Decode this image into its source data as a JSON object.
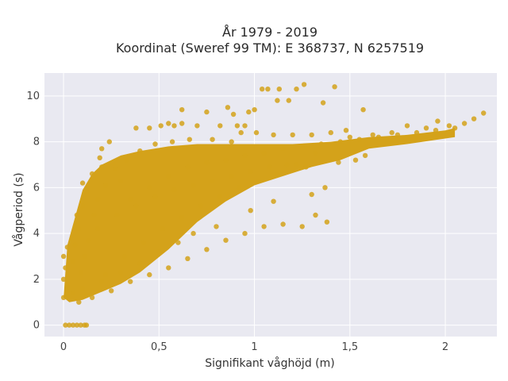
{
  "chart_data": {
    "type": "scatter",
    "title": "År 1979 - 2019",
    "subtitle": "Koordinat (Sweref 99 TM): E 368737, N 6257519",
    "xlabel": "Signifikant våghöjd (m)",
    "ylabel": "Vågperiod (s)",
    "xlim": [
      -0.1,
      2.27
    ],
    "ylim": [
      -0.5,
      11.0
    ],
    "x_ticks": [
      0,
      0.5,
      1,
      1.5,
      2
    ],
    "x_tick_labels": [
      "0",
      "0,5",
      "1",
      "1,5",
      "2"
    ],
    "y_ticks": [
      0,
      2,
      4,
      6,
      8,
      10
    ],
    "y_tick_labels": [
      "0",
      "2",
      "4",
      "6",
      "8",
      "10"
    ],
    "grid": true,
    "legend": "none",
    "marker_color": "#D4A21A",
    "background_color": "#E9E9F1",
    "series": [
      {
        "points": [
          [
            0.01,
            0.0
          ],
          [
            0.03,
            0.0
          ],
          [
            0.05,
            0.0
          ],
          [
            0.07,
            0.0
          ],
          [
            0.09,
            0.0
          ],
          [
            0.11,
            0.0
          ],
          [
            0.12,
            0.0
          ],
          [
            0.0,
            1.2
          ],
          [
            0.02,
            1.5
          ],
          [
            0.0,
            2.0
          ],
          [
            0.01,
            2.5
          ],
          [
            0.0,
            3.0
          ],
          [
            0.02,
            3.4
          ],
          [
            0.05,
            2.8
          ],
          [
            0.06,
            3.5
          ],
          [
            0.08,
            4.2
          ],
          [
            0.07,
            4.8
          ],
          [
            0.1,
            5.2
          ],
          [
            0.12,
            5.8
          ],
          [
            0.1,
            6.2
          ],
          [
            0.15,
            6.6
          ],
          [
            0.19,
            7.3
          ],
          [
            0.2,
            7.7
          ],
          [
            0.24,
            8.0
          ],
          [
            0.38,
            8.6
          ],
          [
            0.55,
            8.8
          ],
          [
            0.45,
            8.6
          ],
          [
            0.51,
            8.7
          ],
          [
            0.58,
            8.7
          ],
          [
            0.62,
            8.8
          ],
          [
            0.7,
            8.7
          ],
          [
            0.82,
            8.7
          ],
          [
            0.91,
            8.7
          ],
          [
            0.95,
            8.7
          ],
          [
            0.75,
            9.3
          ],
          [
            0.86,
            9.5
          ],
          [
            0.89,
            9.2
          ],
          [
            0.97,
            9.3
          ],
          [
            1.0,
            9.4
          ],
          [
            1.04,
            10.3
          ],
          [
            1.07,
            10.3
          ],
          [
            1.13,
            10.3
          ],
          [
            1.22,
            10.3
          ],
          [
            1.26,
            10.5
          ],
          [
            1.42,
            10.4
          ],
          [
            1.12,
            9.8
          ],
          [
            1.18,
            9.8
          ],
          [
            1.36,
            9.7
          ],
          [
            1.57,
            9.4
          ],
          [
            0.62,
            9.4
          ],
          [
            0.2,
            6.9
          ],
          [
            0.3,
            6.3
          ],
          [
            0.35,
            5.5
          ],
          [
            0.45,
            6.0
          ],
          [
            0.55,
            6.5
          ],
          [
            0.65,
            6.9
          ],
          [
            0.75,
            7.1
          ],
          [
            0.85,
            7.2
          ],
          [
            0.95,
            7.4
          ],
          [
            1.05,
            7.5
          ],
          [
            1.15,
            7.7
          ],
          [
            1.25,
            7.8
          ],
          [
            1.35,
            7.9
          ],
          [
            1.45,
            8.0
          ],
          [
            1.55,
            8.1
          ],
          [
            1.65,
            8.2
          ],
          [
            1.75,
            8.3
          ],
          [
            1.85,
            8.4
          ],
          [
            1.95,
            8.5
          ],
          [
            2.05,
            8.6
          ],
          [
            2.15,
            9.0
          ],
          [
            2.2,
            9.25
          ],
          [
            2.1,
            8.8
          ],
          [
            2.02,
            8.7
          ],
          [
            1.96,
            8.9
          ],
          [
            1.9,
            8.6
          ],
          [
            1.8,
            8.7
          ],
          [
            1.72,
            8.4
          ],
          [
            1.62,
            8.3
          ],
          [
            1.5,
            8.2
          ],
          [
            1.32,
            7.5
          ],
          [
            1.22,
            7.0
          ],
          [
            1.12,
            6.6
          ],
          [
            1.02,
            6.3
          ],
          [
            0.92,
            6.0
          ],
          [
            0.82,
            5.6
          ],
          [
            0.72,
            5.2
          ],
          [
            0.62,
            4.7
          ],
          [
            0.52,
            4.2
          ],
          [
            0.42,
            3.6
          ],
          [
            0.32,
            3.0
          ],
          [
            0.22,
            2.2
          ],
          [
            0.12,
            1.3
          ],
          [
            0.08,
            1.0
          ],
          [
            0.15,
            1.2
          ],
          [
            0.25,
            1.5
          ],
          [
            0.35,
            1.9
          ],
          [
            0.45,
            2.2
          ],
          [
            0.55,
            2.5
          ],
          [
            0.65,
            2.9
          ],
          [
            0.75,
            3.3
          ],
          [
            0.85,
            3.7
          ],
          [
            0.95,
            4.0
          ],
          [
            1.05,
            4.3
          ],
          [
            1.15,
            4.4
          ],
          [
            1.25,
            4.3
          ],
          [
            1.38,
            4.5
          ],
          [
            1.32,
            4.8
          ],
          [
            1.37,
            6.0
          ],
          [
            1.3,
            5.7
          ],
          [
            1.1,
            5.4
          ],
          [
            0.98,
            5.0
          ],
          [
            0.8,
            4.3
          ],
          [
            0.68,
            4.0
          ],
          [
            0.6,
            3.6
          ],
          [
            0.5,
            3.2
          ],
          [
            0.4,
            2.7
          ],
          [
            0.3,
            2.3
          ],
          [
            0.2,
            1.9
          ],
          [
            0.1,
            1.6
          ],
          [
            0.05,
            1.4
          ],
          [
            0.02,
            1.7
          ],
          [
            0.16,
            4.8
          ],
          [
            0.18,
            5.5
          ],
          [
            0.22,
            6.1
          ],
          [
            0.27,
            6.8
          ],
          [
            0.33,
            7.2
          ],
          [
            0.4,
            7.6
          ],
          [
            0.48,
            7.9
          ],
          [
            0.57,
            8.0
          ],
          [
            0.66,
            8.1
          ],
          [
            0.78,
            8.1
          ],
          [
            0.88,
            8.0
          ],
          [
            0.93,
            8.4
          ],
          [
            1.01,
            8.4
          ],
          [
            1.1,
            8.3
          ],
          [
            1.2,
            8.3
          ],
          [
            1.3,
            8.3
          ],
          [
            1.4,
            8.4
          ],
          [
            1.48,
            8.5
          ],
          [
            1.53,
            7.2
          ],
          [
            1.58,
            7.4
          ],
          [
            1.44,
            7.1
          ],
          [
            1.27,
            6.9
          ],
          [
            1.17,
            7.0
          ],
          [
            1.08,
            6.9
          ],
          [
            0.98,
            6.7
          ],
          [
            0.88,
            6.5
          ],
          [
            0.78,
            6.3
          ],
          [
            0.68,
            6.1
          ],
          [
            0.58,
            5.9
          ],
          [
            0.48,
            5.6
          ],
          [
            0.38,
            5.2
          ],
          [
            0.28,
            4.8
          ],
          [
            0.18,
            4.2
          ],
          [
            0.13,
            3.7
          ],
          [
            0.11,
            3.0
          ],
          [
            0.09,
            2.3
          ]
        ]
      }
    ]
  }
}
